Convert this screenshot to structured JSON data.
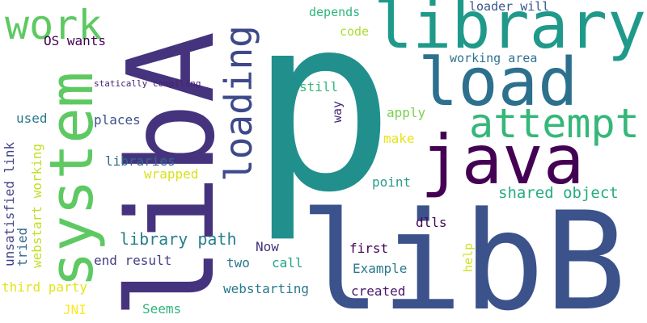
{
  "words": [
    {
      "text": "p",
      "color": "#21908d"
    },
    {
      "text": "libB",
      "color": "#3b528b"
    },
    {
      "text": "libA",
      "color": "#46337e"
    },
    {
      "text": "library",
      "color": "#1f9a8a"
    },
    {
      "text": "load",
      "color": "#2d708e"
    },
    {
      "text": "java",
      "color": "#440154"
    },
    {
      "text": "system",
      "color": "#5ec962"
    },
    {
      "text": "attempt",
      "color": "#35b779"
    },
    {
      "text": "work",
      "color": "#5ec962"
    },
    {
      "text": "loading",
      "color": "#3e4989"
    },
    {
      "text": "library path",
      "color": "#277f8e"
    },
    {
      "text": "shared object",
      "color": "#25ac82"
    },
    {
      "text": "working area",
      "color": "#2c728e"
    },
    {
      "text": "loader will",
      "color": "#39558c"
    },
    {
      "text": "depends",
      "color": "#2fb47c"
    },
    {
      "text": "code",
      "color": "#addc30"
    },
    {
      "text": "OS wants",
      "color": "#440154"
    },
    {
      "text": "statically compiling",
      "color": "#482173"
    },
    {
      "text": "still",
      "color": "#35b779"
    },
    {
      "text": "way",
      "color": "#482878"
    },
    {
      "text": "apply",
      "color": "#7ad151"
    },
    {
      "text": "make",
      "color": "#e5e419"
    },
    {
      "text": "places",
      "color": "#3b528b"
    },
    {
      "text": "used",
      "color": "#2a788e"
    },
    {
      "text": "libraries",
      "color": "#31688e"
    },
    {
      "text": "wrapped",
      "color": "#d8e219"
    },
    {
      "text": "point",
      "color": "#2a9b8a"
    },
    {
      "text": "unsatisfied link",
      "color": "#414487"
    },
    {
      "text": "webstart working",
      "color": "#c2df23"
    },
    {
      "text": "tried",
      "color": "#31688e"
    },
    {
      "text": "third party",
      "color": "#e2e418"
    },
    {
      "text": "JNI",
      "color": "#fde725"
    },
    {
      "text": "end result",
      "color": "#433e85"
    },
    {
      "text": "two",
      "color": "#2a788e"
    },
    {
      "text": "call",
      "color": "#20a386"
    },
    {
      "text": "Now",
      "color": "#46327e"
    },
    {
      "text": "first",
      "color": "#440154"
    },
    {
      "text": "Example",
      "color": "#2a788e"
    },
    {
      "text": "created",
      "color": "#481769"
    },
    {
      "text": "help",
      "color": "#d2e21b"
    },
    {
      "text": "webstarting",
      "color": "#2a788e"
    },
    {
      "text": "dlls",
      "color": "#450559"
    },
    {
      "text": "Seems",
      "color": "#2fb47c"
    }
  ]
}
